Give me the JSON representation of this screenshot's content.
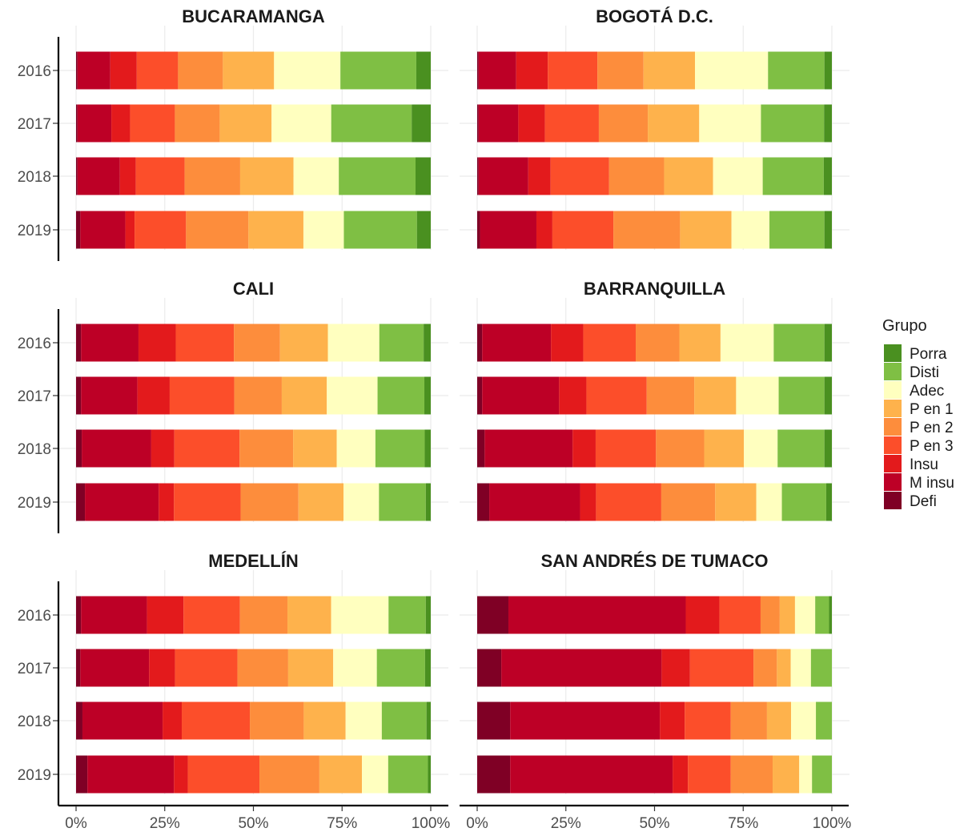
{
  "chart_data": {
    "type": "bar",
    "orientation": "horizontal",
    "stacked": "percent",
    "facet_layout": "3x2",
    "years": [
      "2016",
      "2017",
      "2018",
      "2019"
    ],
    "x_ticks": [
      "0%",
      "25%",
      "50%",
      "75%",
      "100%"
    ],
    "xlim": [
      0,
      100
    ],
    "grid": true,
    "legend": {
      "title": "Grupo",
      "position": "right",
      "entries": [
        "Porra",
        "Disti",
        "Adec",
        "P en 1",
        "P en 2",
        "P en 3",
        "Insu",
        "M insu",
        "Defi"
      ]
    },
    "stack_order": [
      "Defi",
      "M insu",
      "Insu",
      "P en 3",
      "P en 2",
      "P en 1",
      "Adec",
      "Disti",
      "Porra"
    ],
    "colors": {
      "Defi": "#7f0025",
      "M insu": "#bd0026",
      "Insu": "#e31a1c",
      "P en 3": "#fc4e2a",
      "P en 2": "#fd8d3c",
      "P en 1": "#feb24c",
      "Adec": "#ffffbf",
      "Disti": "#7fbf44",
      "Porra": "#4a9020"
    },
    "panels": [
      {
        "title": "BUCARAMANGA",
        "rows": [
          {
            "year": "2016",
            "values": [
              0.4,
              9.3,
              7.5,
              11.7,
              12.7,
              14.5,
              18.8,
              21.5,
              4.1
            ]
          },
          {
            "year": "2017",
            "values": [
              0.4,
              9.6,
              5.3,
              12.7,
              12.7,
              14.7,
              16.9,
              22.8,
              5.4
            ]
          },
          {
            "year": "2018",
            "values": [
              0.4,
              12.0,
              4.5,
              13.8,
              15.7,
              15.1,
              12.8,
              21.7,
              4.3
            ]
          },
          {
            "year": "2019",
            "values": [
              1.2,
              12.7,
              2.6,
              14.5,
              17.6,
              15.5,
              11.4,
              20.6,
              3.9
            ]
          }
        ]
      },
      {
        "title": "BOGOTÁ D.C.",
        "rows": [
          {
            "year": "2016",
            "values": [
              0.4,
              10.6,
              8.9,
              14.0,
              13.0,
              14.5,
              20.6,
              15.9,
              2.1
            ]
          },
          {
            "year": "2017",
            "values": [
              0.4,
              11.2,
              7.5,
              15.2,
              13.8,
              14.5,
              17.4,
              17.8,
              2.2
            ]
          },
          {
            "year": "2018",
            "values": [
              0.4,
              14.0,
              6.3,
              16.5,
              15.5,
              13.8,
              14.0,
              17.2,
              2.3
            ]
          },
          {
            "year": "2019",
            "values": [
              0.8,
              15.9,
              4.5,
              17.2,
              18.8,
              14.5,
              10.7,
              15.5,
              2.1
            ]
          }
        ]
      },
      {
        "title": "CALI",
        "rows": [
          {
            "year": "2016",
            "values": [
              1.4,
              16.2,
              10.5,
              16.4,
              13.0,
              13.5,
              14.5,
              12.5,
              2.0
            ]
          },
          {
            "year": "2017",
            "values": [
              1.4,
              15.9,
              9.1,
              18.2,
              13.4,
              12.7,
              14.3,
              13.2,
              1.8
            ]
          },
          {
            "year": "2018",
            "values": [
              1.6,
              19.6,
              6.5,
              18.4,
              15.1,
              12.3,
              10.9,
              13.9,
              1.7
            ]
          },
          {
            "year": "2019",
            "values": [
              2.5,
              20.8,
              4.3,
              18.8,
              16.3,
              12.7,
              10.0,
              13.2,
              1.4
            ]
          }
        ]
      },
      {
        "title": "BARRANQUILLA",
        "rows": [
          {
            "year": "2016",
            "values": [
              1.4,
              19.4,
              9.1,
              14.8,
              12.3,
              11.6,
              15.0,
              14.3,
              2.1
            ]
          },
          {
            "year": "2017",
            "values": [
              1.4,
              21.7,
              7.7,
              17.0,
              13.4,
              11.8,
              12.0,
              12.9,
              2.1
            ]
          },
          {
            "year": "2018",
            "values": [
              2.1,
              24.8,
              6.5,
              17.0,
              13.6,
              11.2,
              9.5,
              13.2,
              2.1
            ]
          },
          {
            "year": "2019",
            "values": [
              3.4,
              25.6,
              4.5,
              18.4,
              15.2,
              11.6,
              7.2,
              12.5,
              1.6
            ]
          }
        ]
      },
      {
        "title": "MEDELLÍN",
        "rows": [
          {
            "year": "2016",
            "values": [
              1.4,
              18.6,
              10.3,
              15.9,
              13.4,
              12.3,
              16.2,
              10.5,
              1.4
            ]
          },
          {
            "year": "2017",
            "values": [
              1.2,
              19.4,
              7.3,
              17.6,
              14.3,
              12.7,
              12.3,
              13.6,
              1.6
            ]
          },
          {
            "year": "2018",
            "values": [
              1.8,
              22.6,
              5.4,
              19.2,
              15.2,
              11.8,
              10.2,
              12.6,
              1.2
            ]
          },
          {
            "year": "2019",
            "values": [
              3.2,
              24.4,
              3.9,
              20.2,
              16.9,
              12.0,
              7.4,
              11.2,
              0.8
            ]
          }
        ]
      },
      {
        "title": "SAN ANDRÉS DE TUMACO",
        "rows": [
          {
            "year": "2016",
            "values": [
              8.8,
              50.0,
              9.5,
              11.6,
              5.4,
              4.3,
              5.7,
              3.9,
              0.8
            ]
          },
          {
            "year": "2017",
            "values": [
              6.8,
              45.2,
              8.0,
              17.9,
              6.6,
              3.9,
              5.7,
              5.9,
              0
            ]
          },
          {
            "year": "2018",
            "values": [
              9.3,
              42.2,
              7.0,
              13.0,
              10.2,
              6.8,
              7.0,
              4.5,
              0
            ]
          },
          {
            "year": "2019",
            "values": [
              9.3,
              45.8,
              4.3,
              12.1,
              11.8,
              7.5,
              3.6,
              5.6,
              0
            ]
          }
        ]
      }
    ]
  }
}
